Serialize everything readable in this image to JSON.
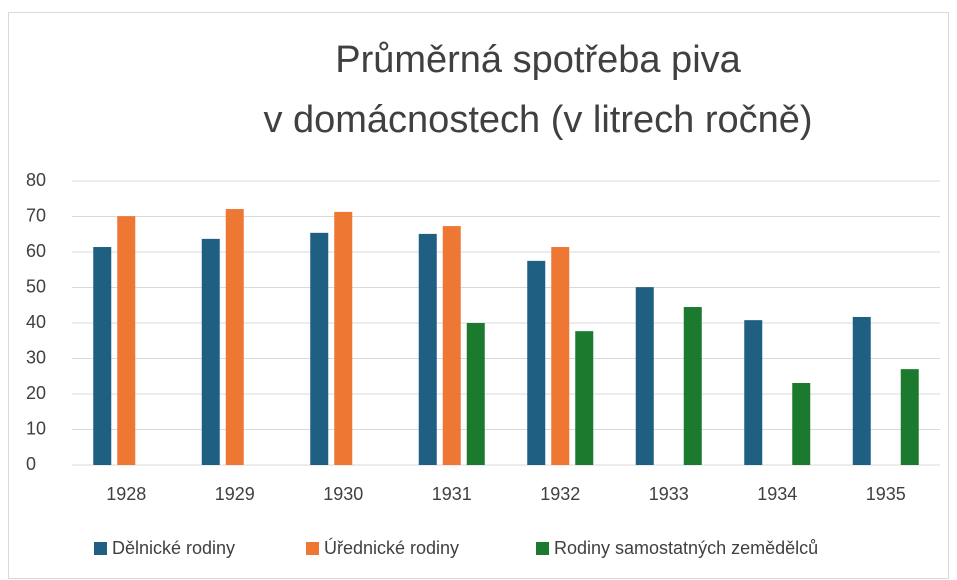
{
  "chart_data": {
    "type": "bar",
    "title": [
      "Průměrná spotřeba piva",
      "v domácnostech (v litrech ročně)"
    ],
    "categories": [
      "1928",
      "1929",
      "1930",
      "1931",
      "1932",
      "1933",
      "1934",
      "1935"
    ],
    "series": [
      {
        "name": "Dělnické rodiny",
        "color": "#1f5f82",
        "values": [
          61.4,
          63.7,
          65.4,
          65.1,
          57.5,
          50.1,
          40.8,
          41.7
        ]
      },
      {
        "name": "Úřednické rodiny",
        "color": "#ee7733",
        "values": [
          70.1,
          72.1,
          71.3,
          67.3,
          61.4,
          null,
          null,
          null
        ]
      },
      {
        "name": "Rodiny samostatných zemědělců",
        "color": "#1b7a2e",
        "values": [
          null,
          null,
          null,
          40,
          37.7,
          44.5,
          23.1,
          27
        ]
      }
    ],
    "ylim": [
      0,
      80
    ],
    "yticks": [
      0,
      10,
      20,
      30,
      40,
      50,
      60,
      70,
      80
    ],
    "grid": true,
    "legend": "bottom"
  }
}
